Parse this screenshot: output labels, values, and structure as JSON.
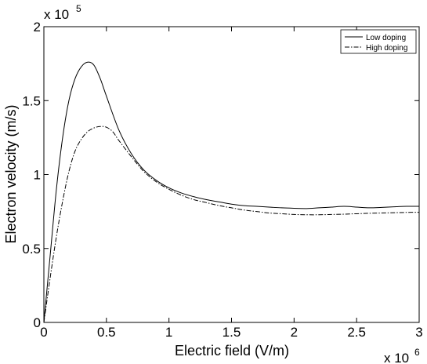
{
  "chart_data": {
    "type": "line",
    "xlabel": "Electric field (V/m)",
    "ylabel": "Electron velocity (m/s)",
    "x_multiplier": {
      "base": "x 10",
      "exponent": "6"
    },
    "y_multiplier": {
      "base": "x 10",
      "exponent": "5"
    },
    "xlim": [
      0,
      3
    ],
    "ylim": [
      0,
      2
    ],
    "xticks": [
      0,
      0.5,
      1,
      1.5,
      2,
      2.5,
      3
    ],
    "xtick_labels": [
      "0",
      "0.5",
      "1",
      "1.5",
      "2",
      "2.5",
      "3"
    ],
    "yticks": [
      0,
      0.5,
      1,
      1.5,
      2
    ],
    "ytick_labels": [
      "0",
      "0.5",
      "1",
      "1.5",
      "2"
    ],
    "grid": false,
    "legend_position": "top-right",
    "series": [
      {
        "name": "Low doping",
        "style": "solid",
        "color": "#000000",
        "points": [
          [
            0,
            0
          ],
          [
            0.05,
            0.45
          ],
          [
            0.1,
            0.9
          ],
          [
            0.15,
            1.25
          ],
          [
            0.2,
            1.5
          ],
          [
            0.25,
            1.65
          ],
          [
            0.3,
            1.73
          ],
          [
            0.35,
            1.76
          ],
          [
            0.4,
            1.74
          ],
          [
            0.45,
            1.65
          ],
          [
            0.5,
            1.53
          ],
          [
            0.6,
            1.3
          ],
          [
            0.7,
            1.14
          ],
          [
            0.8,
            1.03
          ],
          [
            0.9,
            0.96
          ],
          [
            1.0,
            0.91
          ],
          [
            1.1,
            0.875
          ],
          [
            1.2,
            0.85
          ],
          [
            1.3,
            0.83
          ],
          [
            1.4,
            0.815
          ],
          [
            1.5,
            0.8
          ],
          [
            1.6,
            0.79
          ],
          [
            1.7,
            0.785
          ],
          [
            1.8,
            0.78
          ],
          [
            1.9,
            0.775
          ],
          [
            2.0,
            0.772
          ],
          [
            2.1,
            0.77
          ],
          [
            2.2,
            0.775
          ],
          [
            2.3,
            0.78
          ],
          [
            2.4,
            0.785
          ],
          [
            2.5,
            0.78
          ],
          [
            2.6,
            0.775
          ],
          [
            2.7,
            0.778
          ],
          [
            2.8,
            0.782
          ],
          [
            2.9,
            0.785
          ],
          [
            3.0,
            0.785
          ]
        ]
      },
      {
        "name": "High doping",
        "style": "dashdot",
        "color": "#000000",
        "points": [
          [
            0,
            0
          ],
          [
            0.05,
            0.3
          ],
          [
            0.1,
            0.58
          ],
          [
            0.15,
            0.82
          ],
          [
            0.2,
            1.02
          ],
          [
            0.25,
            1.16
          ],
          [
            0.3,
            1.24
          ],
          [
            0.35,
            1.29
          ],
          [
            0.4,
            1.315
          ],
          [
            0.45,
            1.325
          ],
          [
            0.5,
            1.32
          ],
          [
            0.55,
            1.29
          ],
          [
            0.6,
            1.23
          ],
          [
            0.7,
            1.12
          ],
          [
            0.8,
            1.02
          ],
          [
            0.9,
            0.95
          ],
          [
            1.0,
            0.9
          ],
          [
            1.1,
            0.86
          ],
          [
            1.2,
            0.83
          ],
          [
            1.3,
            0.81
          ],
          [
            1.4,
            0.79
          ],
          [
            1.5,
            0.775
          ],
          [
            1.6,
            0.76
          ],
          [
            1.7,
            0.75
          ],
          [
            1.8,
            0.74
          ],
          [
            1.9,
            0.735
          ],
          [
            2.0,
            0.73
          ],
          [
            2.1,
            0.728
          ],
          [
            2.2,
            0.728
          ],
          [
            2.3,
            0.73
          ],
          [
            2.4,
            0.732
          ],
          [
            2.5,
            0.735
          ],
          [
            2.6,
            0.738
          ],
          [
            2.7,
            0.74
          ],
          [
            2.8,
            0.742
          ],
          [
            2.9,
            0.744
          ],
          [
            3.0,
            0.745
          ]
        ]
      }
    ]
  }
}
